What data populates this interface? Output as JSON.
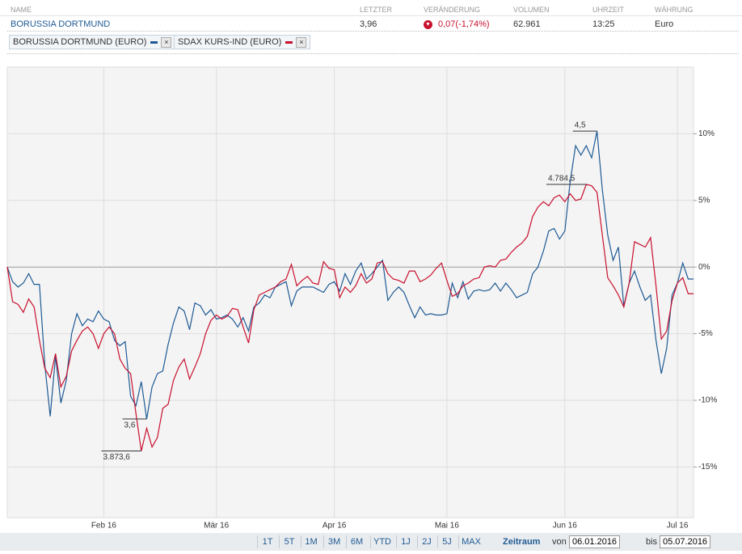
{
  "table": {
    "header": [
      "NAME",
      "LETZTER",
      "VERÄNDERUNG",
      "VOLUMEN",
      "UHRZEIT",
      "WÄHRUNG"
    ],
    "row": [
      "BORUSSIA DORTMUND",
      "3,96",
      "0,07(-1,74%)",
      "62.961",
      "13:25",
      "Euro"
    ]
  },
  "tabs": [
    "BORUSSIA DORTMUND (EURO)",
    "SDAX KURS-IND (EURO)"
  ],
  "chart_data": {
    "type": "line",
    "categories": [
      null,
      null,
      null,
      null,
      null,
      null,
      null,
      null,
      null,
      null,
      null,
      null,
      null,
      null,
      null,
      null,
      null,
      null,
      "Feb 16",
      null,
      null,
      null,
      null,
      null,
      null,
      null,
      null,
      null,
      null,
      null,
      null,
      null,
      null,
      null,
      null,
      null,
      null,
      null,
      null,
      "Mär 16",
      null,
      null,
      null,
      null,
      null,
      null,
      null,
      null,
      null,
      null,
      null,
      null,
      null,
      null,
      null,
      null,
      null,
      null,
      null,
      null,
      null,
      "Apr 16",
      null,
      null,
      null,
      null,
      null,
      null,
      null,
      null,
      null,
      null,
      null,
      null,
      null,
      null,
      null,
      null,
      null,
      null,
      null,
      null,
      "Mai 16",
      null,
      null,
      null,
      null,
      null,
      null,
      null,
      null,
      null,
      null,
      null,
      null,
      null,
      null,
      null,
      null,
      null,
      null,
      null,
      null,
      null,
      "Jun 16",
      null,
      null,
      null,
      null,
      null,
      null,
      null,
      null,
      null,
      null,
      null,
      null,
      null,
      null,
      null,
      null,
      null,
      null,
      null,
      null,
      "Jul 16",
      null,
      null,
      null
    ],
    "series": [
      {
        "name": "BORUSSIA DORTMUND (EURO)",
        "color": "#1f5a94",
        "values": [
          0,
          -1.1,
          -1.5,
          -1.2,
          -0.5,
          -1.3,
          -1.3,
          -7.3,
          -11.2,
          -6.7,
          -10.2,
          -8.5,
          -5.0,
          -3.5,
          -4.4,
          -3.9,
          -4.1,
          -3.3,
          -3.9,
          -4.1,
          -5.5,
          -5.9,
          -5.6,
          -9.7,
          -10.4,
          -8.6,
          -11.4,
          -9.0,
          -8.0,
          -7.8,
          -5.8,
          -4.2,
          -3.0,
          -3.3,
          -4.7,
          -2.7,
          -2.9,
          -3.6,
          -3.2,
          -3.9,
          -3.8,
          -3.6,
          -3.9,
          -4.5,
          -3.8,
          -4.8,
          -3.0,
          -2.7,
          -2.1,
          -2.3,
          -1.5,
          -1.3,
          -1.1,
          -2.9,
          -1.8,
          -1.5,
          -1.5,
          -1.5,
          -1.7,
          -1.9,
          -1.3,
          -1.1,
          -1.8,
          -0.5,
          -1.3,
          -0.3,
          0.3,
          -0.9,
          -0.5,
          0,
          0.5,
          -2.5,
          -1.9,
          -1.5,
          -1.9,
          -2.9,
          -3.8,
          -3.0,
          -3.6,
          -3.5,
          -3.6,
          -3.6,
          -3.5,
          -1.2,
          -2.3,
          -1.1,
          -2.4,
          -1.8,
          -1.7,
          -1.8,
          -1.7,
          -1.2,
          -1.8,
          -1.2,
          -1.7,
          -2.3,
          -2.1,
          -1.9,
          -0.5,
          0,
          1.2,
          2.7,
          2.9,
          2.1,
          2.7,
          6.4,
          9.1,
          8.4,
          9.1,
          8.2,
          10.2,
          5.8,
          2.4,
          0.5,
          1.5,
          -2.9,
          -1.2,
          -0.3,
          -1.5,
          -2.5,
          -2.1,
          -5.5,
          -8.0,
          -6.1,
          -2.1,
          -1.2,
          0.3,
          -0.9,
          -0.9
        ]
      },
      {
        "name": "SDAX KURS-IND (EURO)",
        "color": "#c8102e",
        "values": [
          0,
          -2.6,
          -2.8,
          -3.4,
          -2.4,
          -3.0,
          -5.5,
          -7.6,
          -8.3,
          -6.5,
          -9.0,
          -8.2,
          -6.3,
          -5.5,
          -4.8,
          -4.5,
          -5.0,
          -6.1,
          -5.0,
          -4.5,
          -5.0,
          -6.9,
          -7.6,
          -8.0,
          -11.0,
          -13.8,
          -12.1,
          -13.5,
          -12.8,
          -10.6,
          -10.3,
          -8.5,
          -7.5,
          -6.9,
          -8.4,
          -7.5,
          -6.5,
          -5.0,
          -4.0,
          -3.6,
          -3.9,
          -3.7,
          -3.1,
          -3.2,
          -4.5,
          -5.7,
          -3.2,
          -2.1,
          -1.9,
          -1.7,
          -1.5,
          -1.1,
          -0.9,
          0.2,
          -1.4,
          -1.0,
          -0.7,
          -1.2,
          -1.3,
          0.4,
          -0.1,
          -0.2,
          -2.3,
          -1.5,
          -1.9,
          -1.4,
          -0.5,
          -1.2,
          -0.9,
          0.3,
          0.4,
          -0.5,
          -0.9,
          -1.0,
          -1.2,
          -0.3,
          -0.3,
          -1.1,
          -0.9,
          -0.6,
          -0.1,
          0.3,
          -1.0,
          -2.2,
          -2.0,
          -1.4,
          -1.2,
          -0.9,
          -0.8,
          0.0,
          0.1,
          0.0,
          0.5,
          0.6,
          1.1,
          1.5,
          1.8,
          2.3,
          3.8,
          4.5,
          4.9,
          4.6,
          5.2,
          5.4,
          4.9,
          5.5,
          5.0,
          5.1,
          6.2,
          6.1,
          5.6,
          2.4,
          -0.8,
          -1.4,
          -2.1,
          -3.0,
          -1.2,
          1.9,
          1.7,
          1.5,
          2.2,
          -1.4,
          -5.4,
          -4.8,
          -2.5,
          -1.2,
          -0.8,
          -2.0,
          -2.0
        ]
      }
    ],
    "annotations": [
      "4,5",
      "4.784,5",
      "3,6",
      "3.873,6"
    ],
    "ylim": [
      -18.8,
      15
    ],
    "yticks": [
      {
        "value": 10,
        "label": "10%"
      },
      {
        "value": 5,
        "label": "5%"
      },
      {
        "value": 0,
        "label": "0%"
      },
      {
        "value": -5,
        "label": "-5%"
      },
      {
        "value": -10,
        "label": "-10%"
      },
      {
        "value": -15,
        "label": "-15%"
      }
    ],
    "grid": true
  },
  "controls": {
    "ranges": [
      "1T",
      "5T",
      "1M",
      "3M",
      "6M",
      "YTD",
      "1J",
      "2J",
      "5J",
      "MAX"
    ],
    "zeitraum": "Zeitraum",
    "from_label": "von",
    "from": "06.01.2016",
    "to_label": "bis",
    "to": "05.07.2016"
  }
}
